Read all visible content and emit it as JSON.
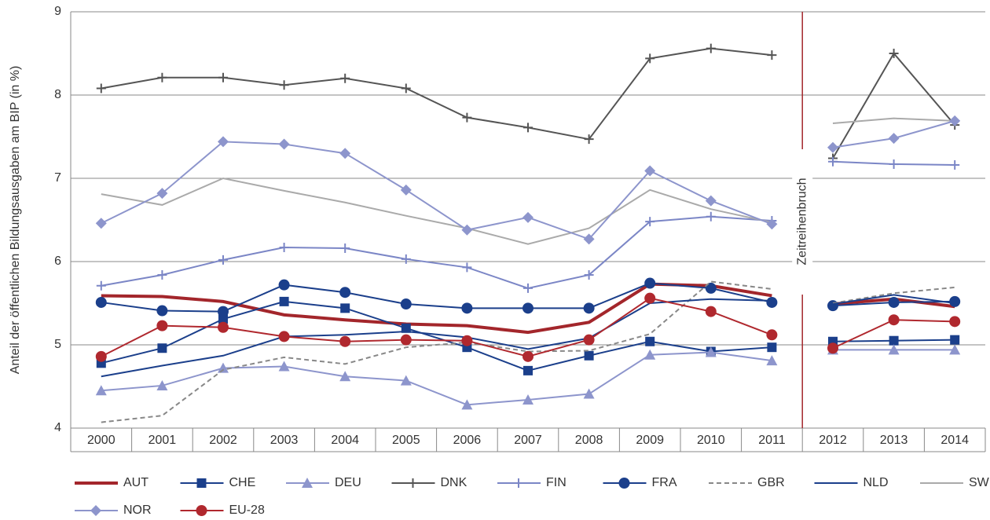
{
  "chart_data": {
    "type": "line",
    "y_label": "Anteil der öffentlichen Bildungsausgaben am BIP (in %)",
    "categories": [
      "2000",
      "2001",
      "2002",
      "2003",
      "2004",
      "2005",
      "2006",
      "2007",
      "2008",
      "2009",
      "2010",
      "2011",
      "2012",
      "2013",
      "2014"
    ],
    "break": {
      "text": "Zeitreihenbruch",
      "after": "2011",
      "color": "#a3262b"
    },
    "ylim": [
      4,
      9
    ],
    "yticks": [
      4,
      5,
      6,
      7,
      8,
      9
    ],
    "grid": true,
    "series": [
      {
        "name": "AUT",
        "color": "#a3262b",
        "width": 4,
        "marker": "none",
        "values": [
          5.59,
          5.58,
          5.52,
          5.36,
          5.3,
          5.25,
          5.23,
          5.15,
          5.27,
          5.73,
          5.71,
          5.59,
          5.49,
          5.55,
          5.46
        ]
      },
      {
        "name": "CHE",
        "color": "#1b3f8b",
        "width": 2,
        "marker": "square",
        "values": [
          4.78,
          4.96,
          5.31,
          5.52,
          5.44,
          5.2,
          4.97,
          4.69,
          4.87,
          5.04,
          4.92,
          4.97,
          5.04,
          5.05,
          5.06
        ]
      },
      {
        "name": "DEU",
        "color": "#8d95cc",
        "width": 2,
        "marker": "triangle",
        "values": [
          4.45,
          4.51,
          4.72,
          4.74,
          4.62,
          4.57,
          4.28,
          4.34,
          4.41,
          4.88,
          4.91,
          4.81,
          4.94,
          4.94,
          4.94
        ]
      },
      {
        "name": "DNK",
        "color": "#555555",
        "width": 2,
        "marker": "plus",
        "values": [
          8.08,
          8.21,
          8.21,
          8.12,
          8.2,
          8.08,
          7.73,
          7.61,
          7.47,
          8.44,
          8.56,
          8.48,
          7.24,
          8.5,
          7.64
        ]
      },
      {
        "name": "FIN",
        "color": "#7b86c6",
        "width": 2,
        "marker": "plus",
        "values": [
          5.71,
          5.84,
          6.02,
          6.17,
          6.16,
          6.03,
          5.93,
          5.68,
          5.84,
          6.48,
          6.54,
          6.49,
          7.2,
          7.17,
          7.16
        ]
      },
      {
        "name": "FRA",
        "color": "#1b3f8b",
        "width": 2,
        "marker": "circle",
        "values": [
          5.51,
          5.41,
          5.4,
          5.72,
          5.63,
          5.49,
          5.44,
          5.44,
          5.44,
          5.74,
          5.68,
          5.51,
          5.47,
          5.51,
          5.52
        ]
      },
      {
        "name": "GBR",
        "color": "#888888",
        "width": 2,
        "dash": "6,4",
        "marker": "none",
        "values": [
          4.07,
          4.15,
          4.7,
          4.85,
          4.77,
          4.97,
          5.03,
          4.92,
          4.93,
          5.13,
          5.76,
          5.67,
          5.5,
          5.62,
          5.69
        ]
      },
      {
        "name": "NLD",
        "color": "#1b3f8b",
        "width": 2,
        "marker": "none",
        "values": [
          4.62,
          4.75,
          4.87,
          5.1,
          5.12,
          5.16,
          5.09,
          4.95,
          5.08,
          5.5,
          5.55,
          5.53,
          5.49,
          5.6,
          5.5
        ]
      },
      {
        "name": "SWE",
        "color": "#aaaaaa",
        "width": 2,
        "marker": "none",
        "values": [
          6.81,
          6.68,
          7.0,
          6.85,
          6.71,
          6.55,
          6.4,
          6.21,
          6.4,
          6.86,
          6.63,
          6.47,
          7.66,
          7.72,
          7.69
        ]
      },
      {
        "name": "NOR",
        "color": "#8d95cc",
        "width": 2,
        "marker": "diamond",
        "values": [
          6.46,
          6.82,
          7.44,
          7.41,
          7.3,
          6.86,
          6.38,
          6.53,
          6.27,
          7.09,
          6.73,
          6.45,
          7.37,
          7.48,
          7.69
        ]
      },
      {
        "name": "EU-28",
        "color": "#b0282e",
        "width": 2,
        "marker": "circle",
        "values": [
          4.86,
          5.23,
          5.21,
          5.1,
          5.04,
          5.06,
          5.05,
          4.86,
          5.06,
          5.56,
          5.4,
          5.12,
          4.96,
          5.3,
          5.28
        ]
      }
    ]
  }
}
